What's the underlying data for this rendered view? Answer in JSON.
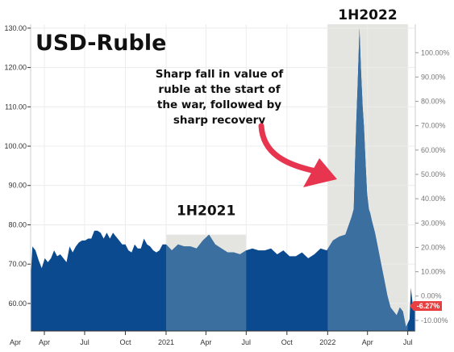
{
  "chart_data": {
    "type": "area",
    "title": "USD-Ruble",
    "xlabel": "",
    "ylabel": "",
    "ylim": [
      53,
      131
    ],
    "y_ticks": [
      "60.00",
      "70.00",
      "80.00",
      "90.00",
      "100.00",
      "110.00",
      "120.00",
      "130.00"
    ],
    "right_axis_ticks": [
      "-10.00%",
      "0.00%",
      "10.00%",
      "20.00%",
      "30.00%",
      "40.00%",
      "50.00%",
      "60.00%",
      "70.00%",
      "80.00%",
      "90.00%",
      "100.00%"
    ],
    "x_ticks": [
      "Apr",
      "Jul",
      "Oct",
      "2021",
      "Apr",
      "Jul",
      "Oct",
      "2022",
      "Apr",
      "Jul"
    ],
    "x_tick_dates": [
      "2020-04-01",
      "2020-07-01",
      "2020-10-01",
      "2021-01-01",
      "2021-04-01",
      "2021-07-01",
      "2021-10-01",
      "2022-01-01",
      "2022-04-01",
      "2022-07-01"
    ],
    "x_range": [
      "2020-03-01",
      "2022-07-18"
    ],
    "grid": true,
    "colors": {
      "area": "#0b4a8f",
      "highlight_area": "#3b6fa0",
      "shade": "#e4e4e0",
      "badge": "#e84040"
    },
    "highlights": [
      {
        "label": "1H2021",
        "start": "2021-01-01",
        "end": "2021-07-01"
      },
      {
        "label": "1H2022",
        "start": "2022-01-01",
        "end": "2022-07-01"
      }
    ],
    "annotation": "Sharp fall in value of ruble at the start of the war, followed by sharp recovery",
    "last_value_badge": "-6.27%",
    "series": [
      {
        "dates": [
          "2020-03-01",
          "2020-03-05",
          "2020-03-12",
          "2020-03-19",
          "2020-03-26",
          "2020-04-02",
          "2020-04-09",
          "2020-04-16",
          "2020-04-23",
          "2020-04-30",
          "2020-05-07",
          "2020-05-14",
          "2020-05-21",
          "2020-05-28",
          "2020-06-04",
          "2020-06-11",
          "2020-06-18",
          "2020-06-25",
          "2020-07-02",
          "2020-07-09",
          "2020-07-16",
          "2020-07-23",
          "2020-07-30",
          "2020-08-06",
          "2020-08-13",
          "2020-08-20",
          "2020-08-27",
          "2020-09-03",
          "2020-09-10",
          "2020-09-17",
          "2020-09-24",
          "2020-10-01",
          "2020-10-08",
          "2020-10-15",
          "2020-10-22",
          "2020-10-29",
          "2020-11-05",
          "2020-11-12",
          "2020-11-19",
          "2020-11-26",
          "2020-12-03",
          "2020-12-10",
          "2020-12-17",
          "2020-12-24",
          "2021-01-01",
          "2021-01-14",
          "2021-01-28",
          "2021-02-11",
          "2021-02-25",
          "2021-03-11",
          "2021-03-25",
          "2021-04-08",
          "2021-04-22",
          "2021-05-06",
          "2021-05-20",
          "2021-06-03",
          "2021-06-17",
          "2021-07-01",
          "2021-07-15",
          "2021-07-29",
          "2021-08-12",
          "2021-08-26",
          "2021-09-09",
          "2021-09-23",
          "2021-10-07",
          "2021-10-21",
          "2021-11-04",
          "2021-11-18",
          "2021-12-02",
          "2021-12-16",
          "2021-12-30",
          "2022-01-13",
          "2022-01-27",
          "2022-02-10",
          "2022-02-24",
          "2022-03-01",
          "2022-03-04",
          "2022-03-07",
          "2022-03-10",
          "2022-03-14",
          "2022-03-17",
          "2022-03-21",
          "2022-03-24",
          "2022-03-28",
          "2022-03-31",
          "2022-04-04",
          "2022-04-07",
          "2022-04-11",
          "2022-04-18",
          "2022-04-25",
          "2022-05-02",
          "2022-05-09",
          "2022-05-16",
          "2022-05-23",
          "2022-05-30",
          "2022-06-06",
          "2022-06-13",
          "2022-06-20",
          "2022-06-27",
          "2022-07-01",
          "2022-07-05",
          "2022-07-08",
          "2022-07-12",
          "2022-07-18"
        ],
        "values": [
          66.5,
          74.5,
          73.5,
          71,
          69,
          71.5,
          70.5,
          71.5,
          73.5,
          72,
          72.5,
          71.5,
          70.5,
          74.5,
          73,
          74.5,
          75.5,
          76,
          76,
          76.5,
          76.5,
          78.5,
          78.5,
          78,
          76.5,
          78,
          76.5,
          78,
          77,
          76,
          75,
          75,
          73.5,
          73,
          75,
          74,
          74,
          76.5,
          75,
          74.5,
          73.5,
          73,
          73.5,
          75,
          75,
          73.5,
          75,
          74.5,
          74.5,
          74,
          76,
          77.5,
          75,
          74,
          73,
          73,
          72.5,
          73.5,
          74,
          73.5,
          73.5,
          74,
          72.5,
          73.5,
          72,
          72,
          73,
          71.5,
          72.5,
          74,
          73.5,
          76,
          77,
          77.5,
          82,
          84,
          96,
          107,
          116,
          130,
          120,
          110,
          105,
          95,
          88,
          84,
          83,
          81,
          78,
          74,
          70,
          66,
          62,
          59,
          58,
          57,
          59,
          58,
          54,
          55,
          56,
          64,
          60,
          58
        ]
      }
    ]
  }
}
